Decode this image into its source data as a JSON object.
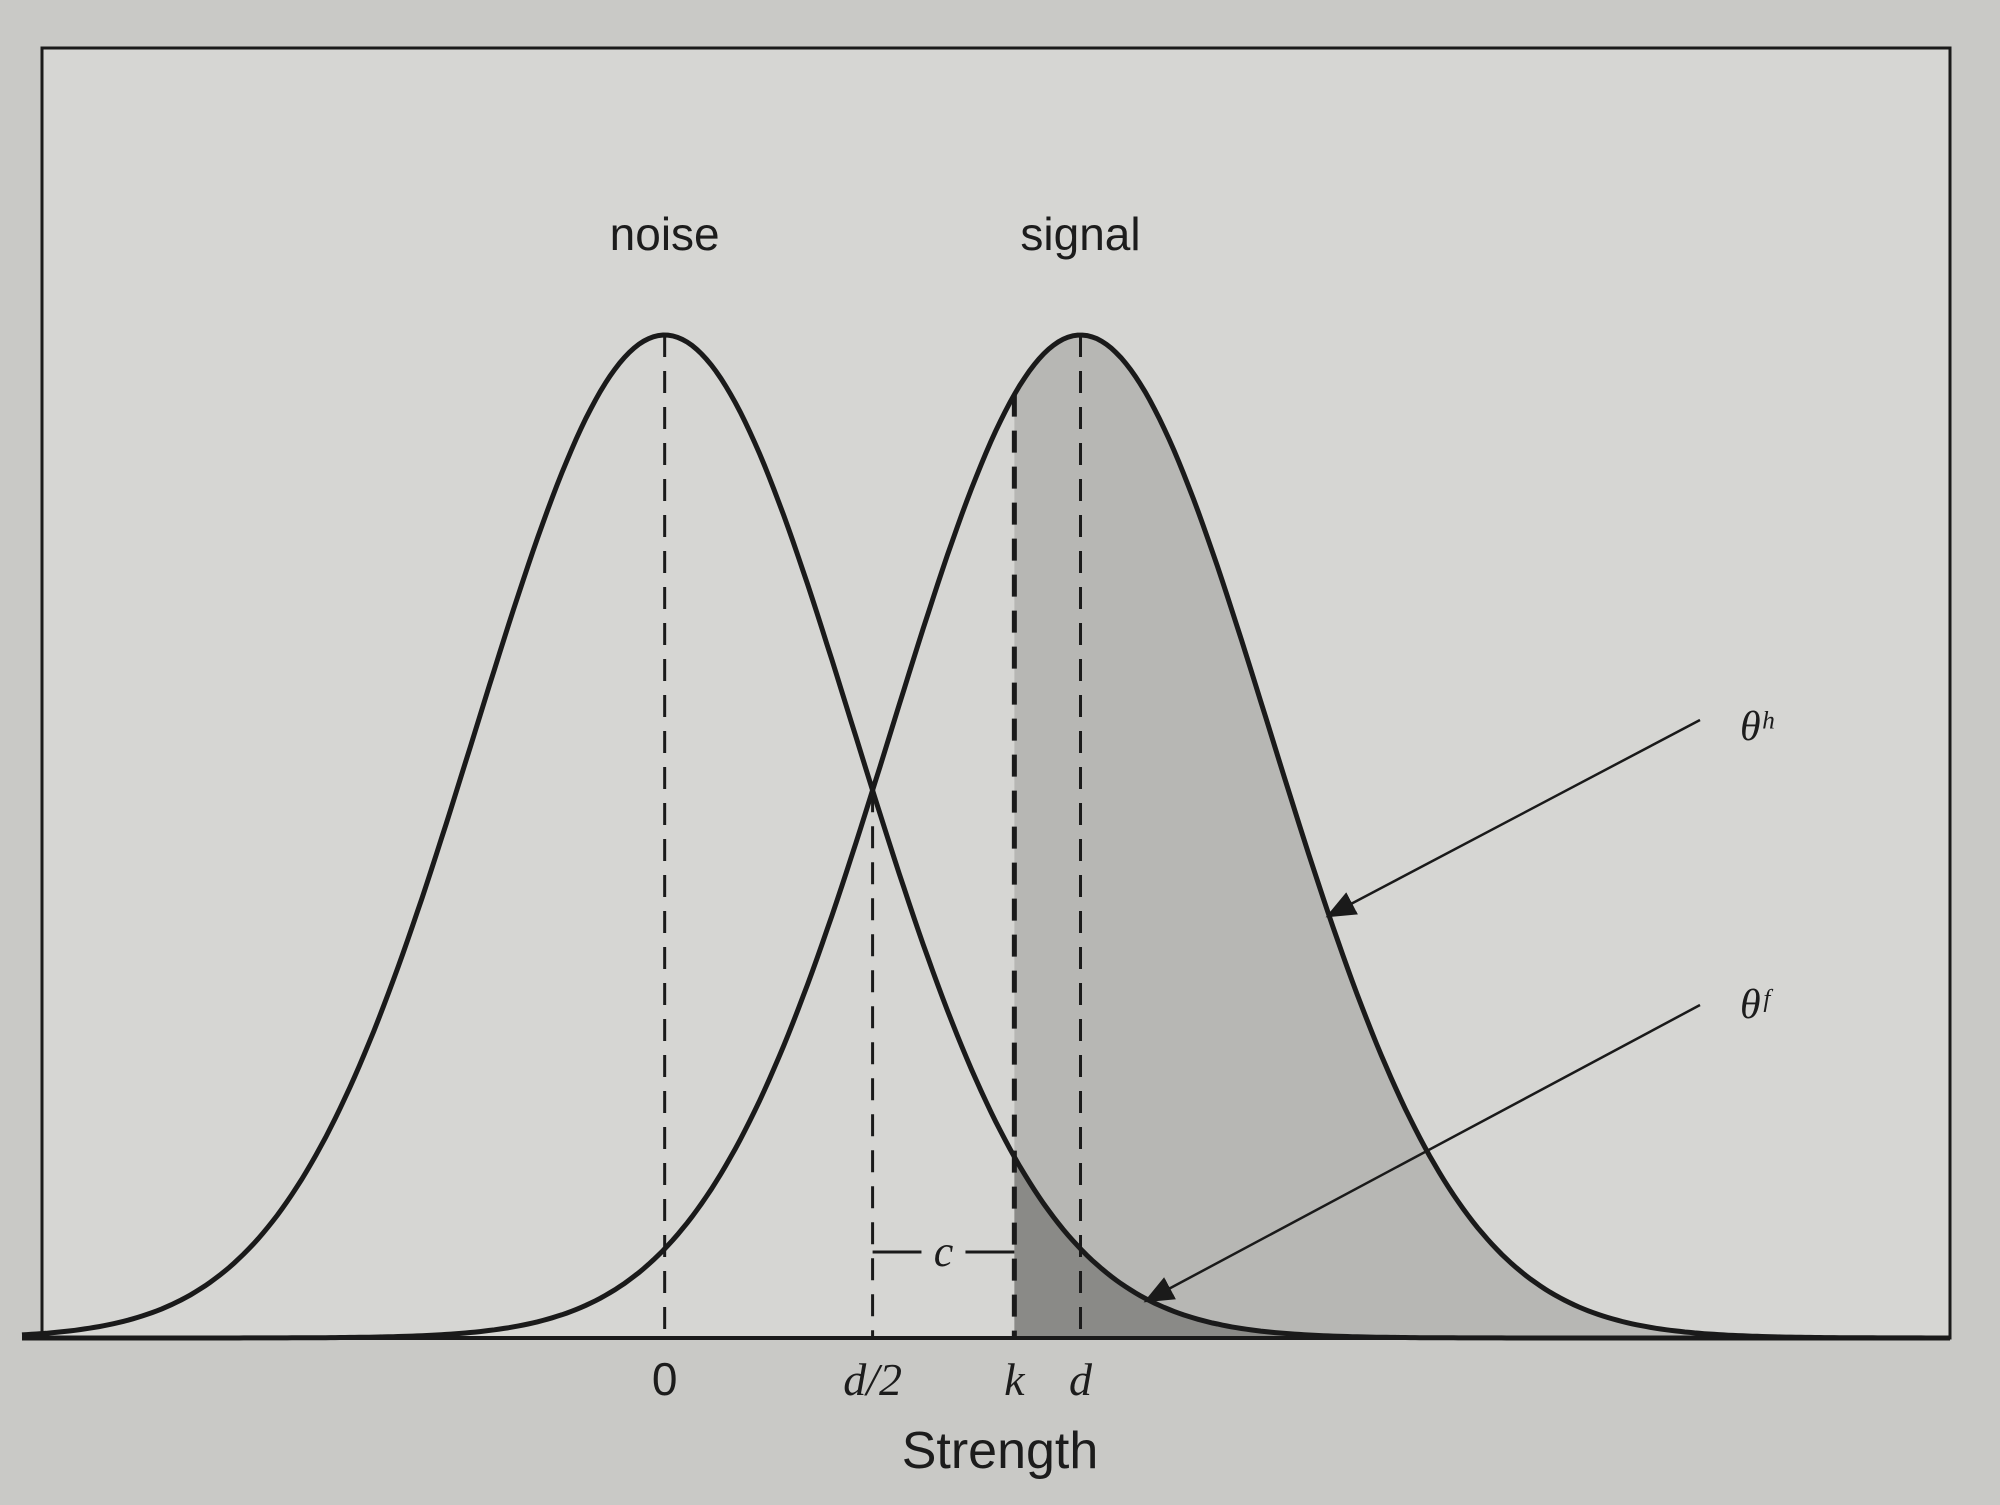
{
  "diagram": {
    "distributions": [
      {
        "id": "noise",
        "label": "noise",
        "mean": 0,
        "sd": 1
      },
      {
        "id": "signal",
        "label": "signal",
        "mean": 2.2,
        "sd": 1
      }
    ],
    "x_range": [
      -3.4,
      6.8
    ],
    "d": 2.2,
    "k": 1.85,
    "ticks": [
      {
        "value": 0,
        "label": "0"
      },
      {
        "value": 1.1,
        "label": "d/2"
      },
      {
        "value": 1.85,
        "label": "k"
      },
      {
        "value": 2.2,
        "label": "d"
      }
    ],
    "xlabel": "Strength",
    "criterion_label": "c",
    "annotations": {
      "hit_label": "θʰ",
      "false_alarm_label": "θᶠ"
    },
    "colors": {
      "curve": "#1a1a1a",
      "hit_fill": "#b7b7b4",
      "false_alarm_fill": "#8a8a87",
      "plot_bg": "#d6d6d3"
    }
  }
}
